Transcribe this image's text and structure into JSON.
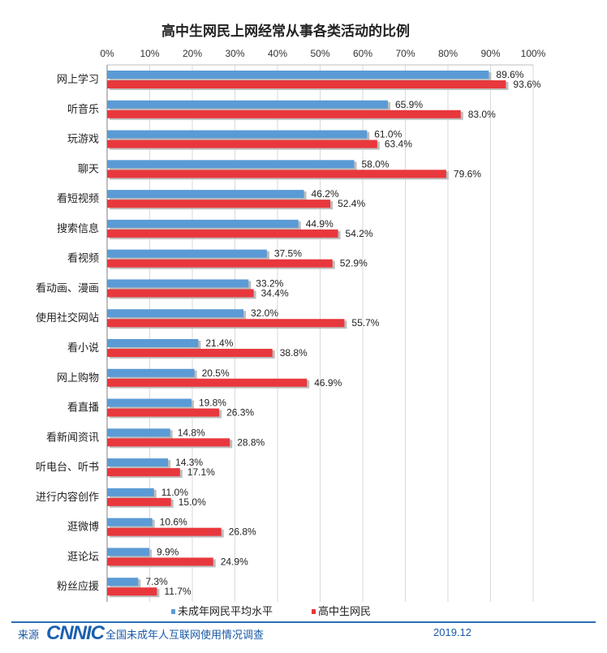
{
  "chart_data": {
    "type": "bar",
    "orientation": "horizontal",
    "title": "高中生网民上网经常从事各类活动的比例",
    "xlim": [
      0,
      100
    ],
    "ticks": [
      "0%",
      "10%",
      "20%",
      "30%",
      "40%",
      "50%",
      "60%",
      "70%",
      "80%",
      "90%",
      "100%"
    ],
    "tick_values": [
      0,
      10,
      20,
      30,
      40,
      50,
      60,
      70,
      80,
      90,
      100
    ],
    "grid": true,
    "axis_position": "top",
    "legend_position": "bottom",
    "categories": [
      "网上学习",
      "听音乐",
      "玩游戏",
      "聊天",
      "看短视频",
      "搜索信息",
      "看视频",
      "看动画、漫画",
      "使用社交网站",
      "看小说",
      "网上购物",
      "看直播",
      "看新闻资讯",
      "听电台、听书",
      "进行内容创作",
      "逛微博",
      "逛论坛",
      "粉丝应援"
    ],
    "series": [
      {
        "name": "未成年网民平均水平",
        "color": "#5b9bd5",
        "values": [
          89.6,
          65.9,
          61.0,
          58.0,
          46.2,
          44.9,
          37.5,
          33.2,
          32.0,
          21.4,
          20.5,
          19.8,
          14.8,
          14.3,
          11.0,
          10.6,
          9.9,
          7.3
        ],
        "labels": [
          "89.6%",
          "65.9%",
          "61.0%",
          "58.0%",
          "46.2%",
          "44.9%",
          "37.5%",
          "33.2%",
          "32.0%",
          "21.4%",
          "20.5%",
          "19.8%",
          "14.8%",
          "14.3%",
          "11.0%",
          "10.6%",
          "9.9%",
          "7.3%"
        ]
      },
      {
        "name": "高中生网民",
        "color": "#e8383d",
        "values": [
          93.6,
          83.0,
          63.4,
          79.6,
          52.4,
          54.2,
          52.9,
          34.4,
          55.7,
          38.8,
          46.9,
          26.3,
          28.8,
          17.1,
          15.0,
          26.8,
          24.9,
          11.7
        ],
        "labels": [
          "93.6%",
          "83.0%",
          "63.4%",
          "79.6%",
          "52.4%",
          "54.2%",
          "52.9%",
          "34.4%",
          "55.7%",
          "38.8%",
          "46.9%",
          "26.3%",
          "28.8%",
          "17.1%",
          "15.0%",
          "26.8%",
          "24.9%",
          "11.7%"
        ]
      }
    ]
  },
  "footer": {
    "source_label": "来源",
    "logo_text": "CNNIC",
    "survey_name": "全国未成年人互联网使用情况调查",
    "date": "2019.12"
  }
}
